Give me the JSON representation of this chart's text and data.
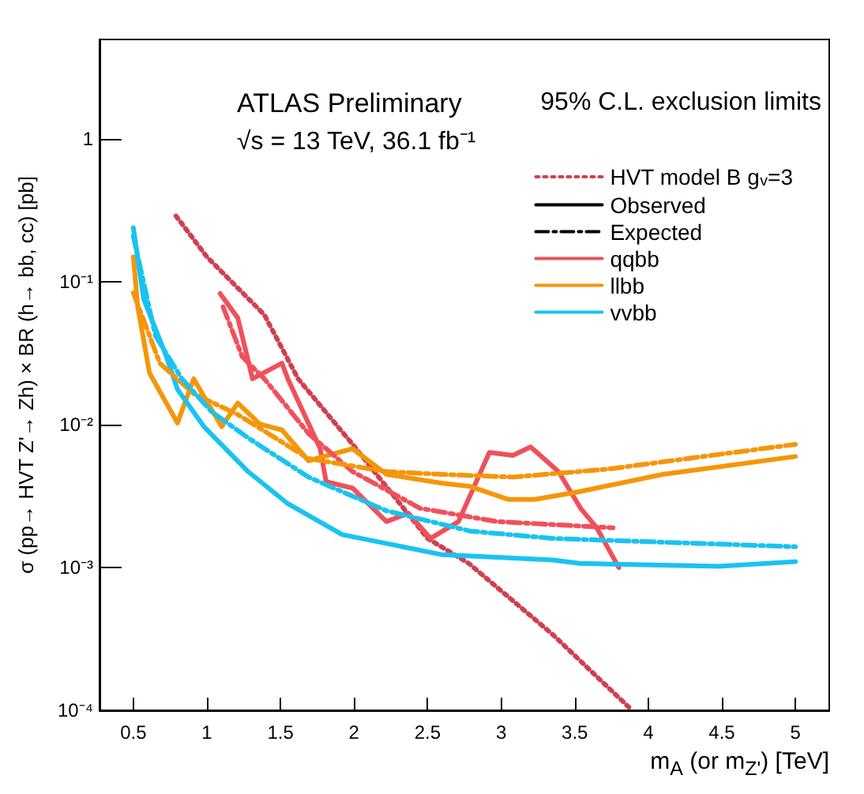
{
  "chart_data": {
    "type": "line",
    "xlabel": "m$_{A}$ (or m$_{Z'}$) [TeV]",
    "ylabel": "σ (pp→ HVT Z'→ Zh) × BR (h→ bb, cc) [pb]",
    "annotations": [
      "ATLAS Preliminary",
      "√s = 13 TeV, 36.1 fb⁻¹",
      "95% C.L. exclusion limits"
    ],
    "xlim": [
      0.27,
      5.23
    ],
    "xticks": [
      0.5,
      1,
      1.5,
      2,
      2.5,
      3,
      3.5,
      4,
      4.5,
      5
    ],
    "ylim": [
      0.0001,
      5
    ],
    "yticks": [
      {
        "value": 0.0001,
        "label": "10⁻⁴"
      },
      {
        "value": 0.001,
        "label": "10⁻³"
      },
      {
        "value": 0.01,
        "label": "10⁻²"
      },
      {
        "value": 0.1,
        "label": "10⁻¹"
      },
      {
        "value": 1,
        "label": "1"
      }
    ],
    "log": "y",
    "grid": false,
    "legend": "top right",
    "marker": "none",
    "series": [
      {
        "name": "HVT model B g$_{v}$=3",
        "color": "#d04050",
        "line_style": "dotted",
        "x": [
          0.79,
          1.0,
          1.39,
          1.62,
          1.99,
          2.5,
          2.78,
          3.35,
          3.89
        ],
        "values": [
          0.29,
          0.15,
          0.059,
          0.021,
          0.0073,
          0.0016,
          0.00107,
          0.00034,
          0.0001
        ]
      },
      {
        "name": "Observed",
        "color": "#000000",
        "line_style": "solid"
      },
      {
        "name": "Expected",
        "color": "#000000",
        "line_style": "dashdot"
      },
      {
        "name": "qqbb",
        "color": "#f0505a",
        "line_style": "solid",
        "x": [
          1.09,
          1.21,
          1.31,
          1.51,
          1.55,
          1.77,
          1.81,
          1.99,
          2.22,
          2.37,
          2.52,
          2.71,
          2.92,
          3.08,
          3.2,
          3.39,
          3.54,
          3.65,
          3.8
        ],
        "values": [
          0.083,
          0.056,
          0.021,
          0.027,
          0.021,
          0.0068,
          0.004,
          0.0036,
          0.0021,
          0.0024,
          0.0016,
          0.0021,
          0.0064,
          0.0061,
          0.007,
          0.0047,
          0.0026,
          0.0019,
          0.001
        ]
      },
      {
        "name": "llbb",
        "color": "#f5960a",
        "line_style": "solid",
        "x": [
          0.5,
          0.53,
          0.61,
          0.8,
          0.91,
          1.1,
          1.21,
          1.36,
          1.51,
          1.69,
          1.99,
          2.22,
          2.6,
          2.79,
          3.05,
          3.23,
          3.53,
          4.1,
          5.0
        ],
        "values": [
          0.15,
          0.067,
          0.023,
          0.0103,
          0.021,
          0.0097,
          0.0142,
          0.0101,
          0.0092,
          0.0056,
          0.0068,
          0.0045,
          0.0039,
          0.0037,
          0.003,
          0.003,
          0.0034,
          0.0045,
          0.006
        ]
      },
      {
        "name": "vvbb",
        "color": "#19c3f0",
        "line_style": "solid",
        "x": [
          0.5,
          0.57,
          0.72,
          0.8,
          0.98,
          1.28,
          1.55,
          1.92,
          2.6,
          3.35,
          3.53,
          4.48,
          5.0
        ],
        "values": [
          0.24,
          0.076,
          0.031,
          0.0177,
          0.0097,
          0.0047,
          0.0028,
          0.0017,
          0.00123,
          0.00113,
          0.00107,
          0.00102,
          0.0011
        ]
      },
      {
        "color": "#f0505a",
        "line_style": "dashdot",
        "x": [
          1.11,
          1.24,
          1.39,
          1.69,
          1.99,
          2.45,
          2.97,
          3.76
        ],
        "values": [
          0.067,
          0.03,
          0.021,
          0.0087,
          0.0047,
          0.0026,
          0.0021,
          0.0019
        ]
      },
      {
        "color": "#f5960a",
        "line_style": "dashdot",
        "x": [
          0.5,
          0.68,
          0.91,
          1.21,
          1.69,
          2.22,
          2.6,
          3.08,
          3.73,
          5.0
        ],
        "values": [
          0.084,
          0.027,
          0.0165,
          0.0118,
          0.0058,
          0.0047,
          0.0045,
          0.0043,
          0.0049,
          0.0073
        ]
      },
      {
        "color": "#19c3f0",
        "line_style": "dashdot",
        "x": [
          0.5,
          0.65,
          0.83,
          1.03,
          1.28,
          1.69,
          2.22,
          2.79,
          3.35,
          5.0
        ],
        "values": [
          0.21,
          0.042,
          0.021,
          0.0124,
          0.0081,
          0.0043,
          0.0025,
          0.0018,
          0.0016,
          0.0014
        ]
      }
    ]
  }
}
